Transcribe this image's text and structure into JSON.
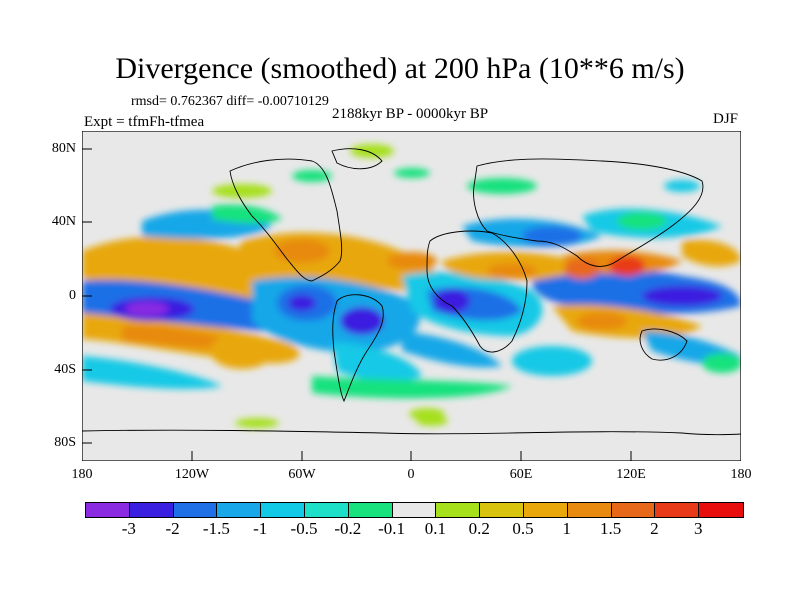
{
  "title": "Divergence (smoothed) at 200 hPa (10**6 m/s)",
  "stats": "rmsd= 0.762367 diff= -0.00710129",
  "period": "2188kyr BP - 0000kyr BP",
  "expt": "Expt = tfmFh-tfmea",
  "season": "DJF",
  "axes": {
    "lat_labels": [
      "80N",
      "40N",
      "0",
      "40S",
      "80S"
    ],
    "lon_labels": [
      "180",
      "120W",
      "60W",
      "0",
      "60E",
      "120E",
      "180"
    ]
  },
  "colorbar": {
    "colors": [
      "#8a2be2",
      "#3a1fe0",
      "#1f6fe6",
      "#18a7e8",
      "#12c9e6",
      "#1ee0c8",
      "#18e27e",
      "#e8e8e8",
      "#a6e01a",
      "#d8c40e",
      "#e8a80c",
      "#e88a10",
      "#e8681a",
      "#e83a18",
      "#e80e0e"
    ],
    "labels": [
      "-3",
      "-2",
      "-1.5",
      "-1",
      "-0.5",
      "-0.2",
      "-0.1",
      "0.1",
      "0.2",
      "0.5",
      "1",
      "1.5",
      "2",
      "3"
    ]
  }
}
